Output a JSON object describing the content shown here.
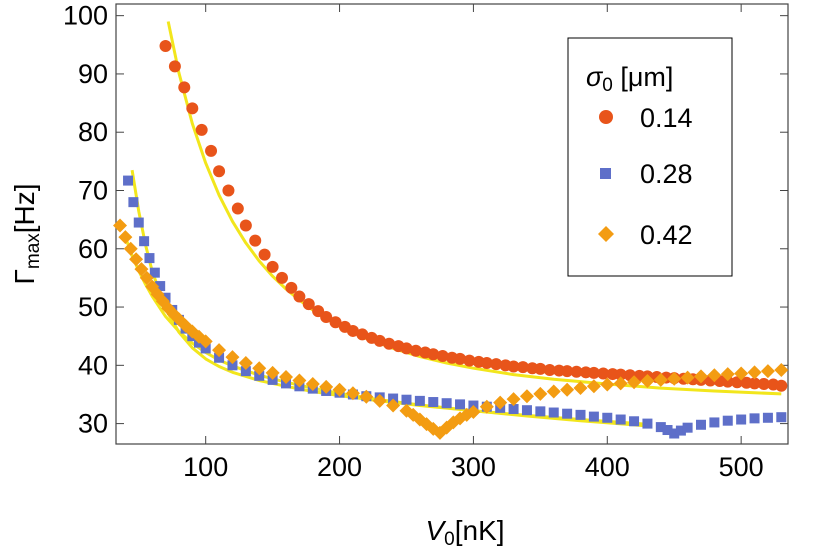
{
  "chart_data": {
    "type": "scatter",
    "xlabel_main": "V",
    "xlabel_sub": "0",
    "xlabel_unit": "[nK]",
    "ylabel_main": "Γ",
    "ylabel_sub": "max",
    "ylabel_unit": "[Hz]",
    "xlim": [
      33,
      535
    ],
    "ylim": [
      26.5,
      102
    ],
    "xticks": [
      100,
      200,
      300,
      400,
      500
    ],
    "yticks": [
      30,
      40,
      50,
      60,
      70,
      80,
      90,
      100
    ],
    "grid": false,
    "legend": {
      "placement": "top-right",
      "title_main": "σ",
      "title_sub": "0",
      "title_unit": " [μm]"
    },
    "series": [
      {
        "name": "0.14",
        "marker": "circle",
        "color": "#e8541a",
        "x": [
          70,
          77,
          84,
          90,
          97,
          104,
          110,
          117,
          124,
          130,
          137,
          144,
          150,
          157,
          164,
          170,
          177,
          184,
          190,
          197,
          204,
          210,
          217,
          224,
          230,
          237,
          244,
          250,
          257,
          264,
          270,
          277,
          284,
          290,
          297,
          304,
          310,
          317,
          324,
          330,
          337,
          344,
          350,
          357,
          364,
          370,
          377,
          384,
          390,
          397,
          404,
          410,
          417,
          424,
          430,
          437,
          444,
          450,
          457,
          464,
          470,
          477,
          484,
          490,
          497,
          504,
          510,
          517,
          524,
          530
        ],
        "y": [
          94.8,
          91.3,
          87.7,
          84.1,
          80.4,
          76.8,
          73.3,
          70.0,
          66.9,
          64.0,
          61.4,
          59.0,
          56.9,
          55.0,
          53.3,
          51.8,
          50.5,
          49.3,
          48.3,
          47.4,
          46.6,
          45.9,
          45.3,
          44.7,
          44.2,
          43.7,
          43.3,
          42.9,
          42.5,
          42.2,
          41.9,
          41.6,
          41.3,
          41.1,
          40.8,
          40.6,
          40.4,
          40.2,
          40.0,
          39.8,
          39.7,
          39.5,
          39.4,
          39.2,
          39.1,
          39.0,
          38.9,
          38.8,
          38.7,
          38.6,
          38.5,
          38.4,
          38.3,
          38.2,
          38.1,
          38.0,
          37.9,
          37.8,
          37.7,
          37.6,
          37.5,
          37.4,
          37.3,
          37.2,
          37.1,
          37.0,
          36.9,
          36.8,
          36.7,
          36.5
        ]
      },
      {
        "name": "0.28",
        "marker": "square",
        "color": "#5e6fc9",
        "x": [
          42,
          46,
          50,
          54,
          58,
          62,
          66,
          70,
          75,
          80,
          85,
          90,
          95,
          100,
          110,
          120,
          130,
          140,
          150,
          160,
          170,
          180,
          190,
          200,
          210,
          220,
          230,
          240,
          250,
          260,
          270,
          280,
          290,
          300,
          310,
          320,
          330,
          340,
          350,
          360,
          370,
          380,
          390,
          400,
          410,
          420,
          430,
          440,
          445,
          450,
          455,
          460,
          470,
          480,
          490,
          500,
          510,
          520,
          530
        ],
        "y": [
          71.7,
          68.0,
          64.5,
          61.3,
          58.4,
          55.9,
          53.6,
          51.6,
          49.5,
          47.8,
          46.3,
          45.0,
          43.9,
          42.9,
          41.3,
          40.0,
          39.0,
          38.2,
          37.5,
          36.9,
          36.4,
          36.0,
          35.6,
          35.3,
          35.0,
          34.7,
          34.5,
          34.3,
          34.1,
          33.9,
          33.7,
          33.5,
          33.3,
          33.1,
          32.9,
          32.7,
          32.5,
          32.3,
          32.1,
          31.9,
          31.7,
          31.5,
          31.2,
          31.0,
          30.7,
          30.4,
          30.0,
          29.4,
          28.9,
          28.3,
          28.8,
          29.3,
          29.8,
          30.2,
          30.5,
          30.7,
          30.9,
          31.0,
          31.1
        ]
      },
      {
        "name": "0.42",
        "marker": "diamond",
        "color": "#f39c12",
        "x": [
          36,
          40,
          44,
          48,
          52,
          56,
          60,
          64,
          68,
          72,
          76,
          80,
          85,
          90,
          95,
          100,
          110,
          120,
          130,
          140,
          150,
          160,
          170,
          180,
          190,
          200,
          210,
          220,
          230,
          240,
          250,
          255,
          260,
          265,
          270,
          275,
          280,
          285,
          290,
          295,
          300,
          310,
          320,
          330,
          340,
          350,
          360,
          370,
          380,
          390,
          400,
          410,
          420,
          430,
          440,
          450,
          460,
          470,
          480,
          490,
          500,
          510,
          520,
          530
        ],
        "y": [
          64.0,
          62.0,
          60.0,
          58.2,
          56.5,
          55.0,
          53.5,
          52.2,
          51.0,
          49.8,
          48.8,
          47.9,
          46.8,
          45.8,
          44.9,
          44.1,
          42.6,
          41.4,
          40.4,
          39.5,
          38.7,
          38.0,
          37.4,
          36.8,
          36.3,
          35.8,
          35.2,
          34.6,
          33.9,
          33.1,
          32.2,
          31.5,
          30.7,
          29.9,
          29.1,
          28.4,
          29.3,
          30.2,
          30.9,
          31.5,
          32.0,
          32.9,
          33.6,
          34.2,
          34.7,
          35.1,
          35.5,
          35.8,
          36.1,
          36.4,
          36.7,
          36.9,
          37.1,
          37.3,
          37.5,
          37.7,
          37.9,
          38.1,
          38.3,
          38.5,
          38.6,
          38.8,
          39.0,
          39.2
        ]
      }
    ],
    "fits": [
      {
        "color": "#f2e61c",
        "x": [
          72,
          80,
          90,
          100,
          110,
          120,
          130,
          140,
          150,
          160,
          170,
          180,
          190,
          200,
          220,
          240,
          260,
          280,
          300,
          330,
          360,
          400,
          440,
          480,
          530
        ],
        "y": [
          99.0,
          90.2,
          81.5,
          74.7,
          69.2,
          64.7,
          61.0,
          57.9,
          55.3,
          53.1,
          51.2,
          49.5,
          48.0,
          46.7,
          44.6,
          42.9,
          41.5,
          40.4,
          39.5,
          38.4,
          37.6,
          36.8,
          36.1,
          35.6,
          35.1
        ]
      },
      {
        "color": "#f2e61c",
        "x": [
          45,
          50,
          55,
          60,
          70,
          80,
          90,
          100,
          110,
          120,
          140,
          160,
          180,
          200,
          230,
          260,
          300,
          340,
          380,
          430
        ],
        "y": [
          73.5,
          66.4,
          60.7,
          56.2,
          49.7,
          45.7,
          43.0,
          41.1,
          39.8,
          38.8,
          37.4,
          36.4,
          35.5,
          34.8,
          33.9,
          33.1,
          32.2,
          31.4,
          30.7,
          29.9
        ]
      },
      {
        "color": "#f2e61c",
        "x": [
          40,
          45,
          50,
          55,
          60,
          70,
          80,
          90,
          100,
          110,
          120,
          140,
          160,
          180,
          200,
          230,
          260,
          300,
          340,
          380,
          430
        ],
        "y": [
          62.0,
          58.8,
          56.2,
          53.9,
          51.9,
          48.4,
          45.8,
          43.8,
          42.2,
          40.9,
          39.9,
          38.3,
          37.1,
          36.1,
          35.2,
          34.1,
          33.2,
          32.2,
          31.3,
          30.5,
          29.6
        ]
      }
    ]
  }
}
